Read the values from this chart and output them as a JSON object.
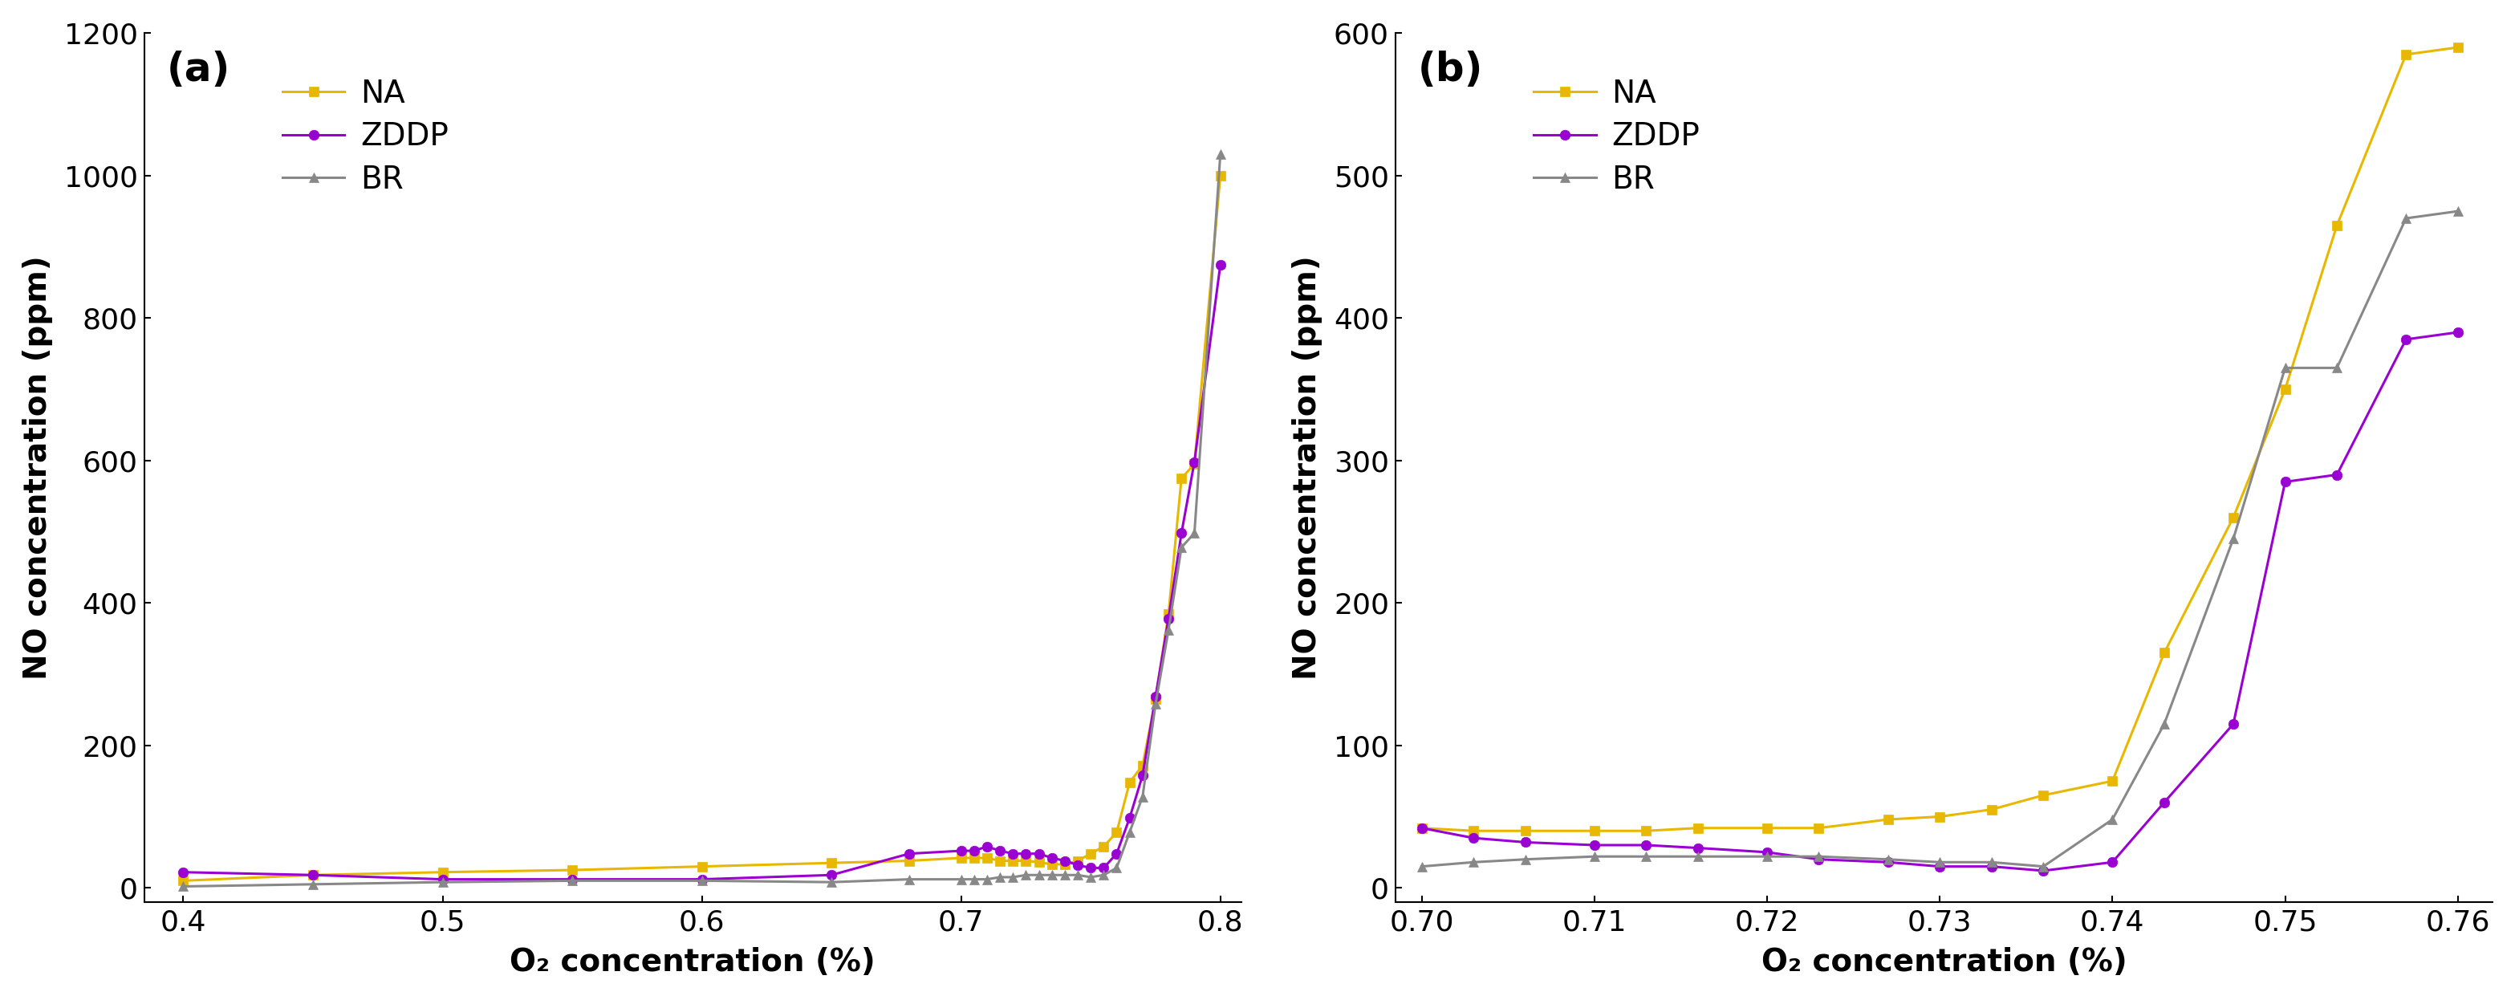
{
  "panel_a": {
    "NA": {
      "x": [
        0.4,
        0.45,
        0.5,
        0.55,
        0.6,
        0.65,
        0.68,
        0.7,
        0.705,
        0.71,
        0.715,
        0.72,
        0.725,
        0.73,
        0.735,
        0.74,
        0.745,
        0.75,
        0.755,
        0.76,
        0.765,
        0.77,
        0.775,
        0.78,
        0.785,
        0.79,
        0.8
      ],
      "y": [
        10,
        18,
        22,
        25,
        30,
        35,
        38,
        42,
        42,
        42,
        38,
        38,
        38,
        36,
        33,
        33,
        38,
        48,
        58,
        78,
        148,
        172,
        265,
        385,
        575,
        595,
        1000
      ]
    },
    "ZDDP": {
      "x": [
        0.4,
        0.45,
        0.5,
        0.55,
        0.6,
        0.65,
        0.68,
        0.7,
        0.705,
        0.71,
        0.715,
        0.72,
        0.725,
        0.73,
        0.735,
        0.74,
        0.745,
        0.75,
        0.755,
        0.76,
        0.765,
        0.77,
        0.775,
        0.78,
        0.785,
        0.79,
        0.8
      ],
      "y": [
        22,
        18,
        12,
        12,
        12,
        18,
        48,
        52,
        52,
        58,
        52,
        48,
        48,
        48,
        42,
        38,
        32,
        28,
        28,
        48,
        98,
        158,
        268,
        378,
        498,
        598,
        875
      ]
    },
    "BR": {
      "x": [
        0.4,
        0.45,
        0.5,
        0.55,
        0.6,
        0.65,
        0.68,
        0.7,
        0.705,
        0.71,
        0.715,
        0.72,
        0.725,
        0.73,
        0.735,
        0.74,
        0.745,
        0.75,
        0.755,
        0.76,
        0.765,
        0.77,
        0.775,
        0.78,
        0.785,
        0.79,
        0.8
      ],
      "y": [
        2,
        5,
        8,
        10,
        10,
        8,
        12,
        12,
        12,
        12,
        15,
        15,
        18,
        18,
        18,
        18,
        18,
        15,
        18,
        28,
        78,
        128,
        258,
        362,
        478,
        498,
        1030
      ]
    },
    "xlim": [
      0.385,
      0.808
    ],
    "ylim": [
      -20,
      1200
    ],
    "xticks": [
      0.4,
      0.5,
      0.6,
      0.7,
      0.8
    ],
    "yticks": [
      0,
      200,
      400,
      600,
      800,
      1000,
      1200
    ],
    "xlabel": "O₂ concentration (%)",
    "ylabel": "NO concentration (ppm)",
    "label": "(a)"
  },
  "panel_b": {
    "NA": {
      "x": [
        0.7,
        0.703,
        0.706,
        0.71,
        0.713,
        0.716,
        0.72,
        0.723,
        0.727,
        0.73,
        0.733,
        0.736,
        0.74,
        0.743,
        0.747,
        0.75,
        0.753,
        0.757,
        0.76
      ],
      "y": [
        42,
        40,
        40,
        40,
        40,
        42,
        42,
        42,
        48,
        50,
        55,
        65,
        75,
        165,
        260,
        350,
        465,
        585,
        590
      ]
    },
    "ZDDP": {
      "x": [
        0.7,
        0.703,
        0.706,
        0.71,
        0.713,
        0.716,
        0.72,
        0.723,
        0.727,
        0.73,
        0.733,
        0.736,
        0.74,
        0.743,
        0.747,
        0.75,
        0.753,
        0.757,
        0.76
      ],
      "y": [
        42,
        35,
        32,
        30,
        30,
        28,
        25,
        20,
        18,
        15,
        15,
        12,
        18,
        60,
        115,
        285,
        290,
        385,
        390
      ]
    },
    "BR": {
      "x": [
        0.7,
        0.703,
        0.706,
        0.71,
        0.713,
        0.716,
        0.72,
        0.723,
        0.727,
        0.73,
        0.733,
        0.736,
        0.74,
        0.743,
        0.747,
        0.75,
        0.753,
        0.757,
        0.76
      ],
      "y": [
        15,
        18,
        20,
        22,
        22,
        22,
        22,
        22,
        20,
        18,
        18,
        15,
        48,
        115,
        245,
        365,
        365,
        470,
        475
      ]
    },
    "xlim": [
      0.6985,
      0.762
    ],
    "ylim": [
      -10,
      600
    ],
    "xticks": [
      0.7,
      0.71,
      0.72,
      0.73,
      0.74,
      0.75,
      0.76
    ],
    "yticks": [
      0,
      100,
      200,
      300,
      400,
      500,
      600
    ],
    "xlabel": "O₂ concentration (%)",
    "ylabel": "NO concentration (ppm)",
    "label": "(b)"
  },
  "colors": {
    "NA": "#E8B800",
    "ZDDP": "#9B00D3",
    "BR": "#888888"
  },
  "markers": {
    "NA": "s",
    "ZDDP": "o",
    "BR": "^"
  },
  "linewidth": 2.2,
  "markersize": 9,
  "fontsize_label": 28,
  "fontsize_tick": 26,
  "fontsize_legend": 28,
  "fontsize_panel": 36
}
